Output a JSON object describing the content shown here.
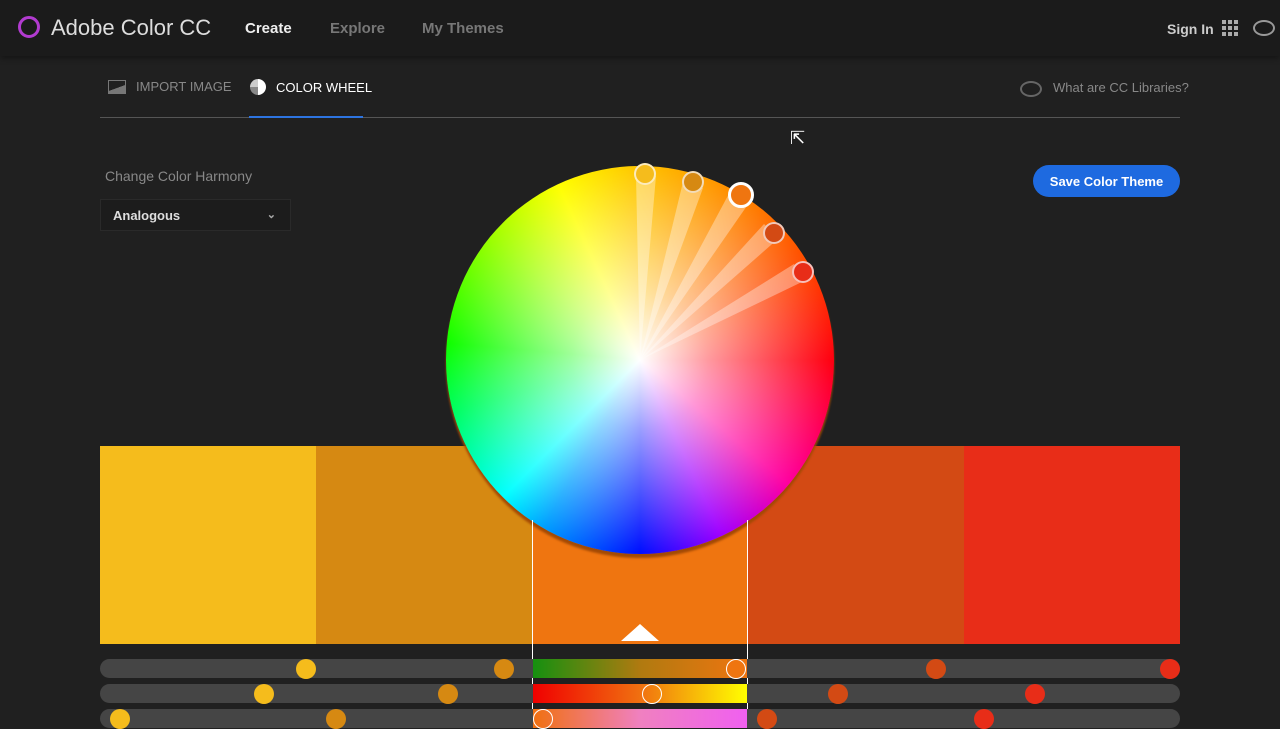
{
  "header": {
    "brand": "Adobe Color CC",
    "nav": [
      {
        "label": "Create",
        "active": true
      },
      {
        "label": "Explore"
      },
      {
        "label": "My Themes"
      }
    ],
    "signin": "Sign In"
  },
  "tabs": [
    {
      "label": "IMPORT IMAGE",
      "icon": "image-icon"
    },
    {
      "label": "COLOR WHEEL",
      "icon": "color-wheel-icon",
      "active": true
    }
  ],
  "cc_libraries": "What are CC Libraries?",
  "harmony": {
    "label": "Change Color Harmony",
    "value": "Analogous"
  },
  "save_label": "Save Color Theme",
  "swatches": [
    "#f5bc1c",
    "#d68912",
    "#ef7510",
    "#d34a14",
    "#e82d18"
  ],
  "selected_swatch": 2,
  "accent": "#1e6ae0"
}
